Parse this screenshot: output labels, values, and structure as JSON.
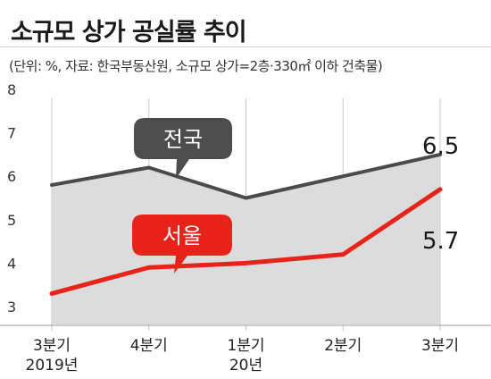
{
  "header": {
    "title": "소규모 상가 공실률 추이",
    "subtitle": "(단위: %, 자료: 한국부동산원, 소규모 상가=2층·330㎡ 이하 건축물)"
  },
  "chart_data": {
    "type": "line",
    "categories": [
      "3분기\n2019년",
      "4분기",
      "1분기\n20년",
      "2분기",
      "3분기"
    ],
    "y_ticks": [
      "3",
      "4",
      "5",
      "6",
      "7",
      "8"
    ],
    "ylim": [
      3,
      8
    ],
    "grid": false,
    "series": [
      {
        "name": "전국",
        "values": [
          5.8,
          6.2,
          5.5,
          6.0,
          6.5
        ],
        "end_label": "6.5",
        "color": "#4a4a4a",
        "fill": "#dcdcdc"
      },
      {
        "name": "서울",
        "values": [
          3.3,
          3.9,
          4.0,
          4.2,
          5.7
        ],
        "end_label": "5.7",
        "color": "#e8231a"
      }
    ]
  }
}
